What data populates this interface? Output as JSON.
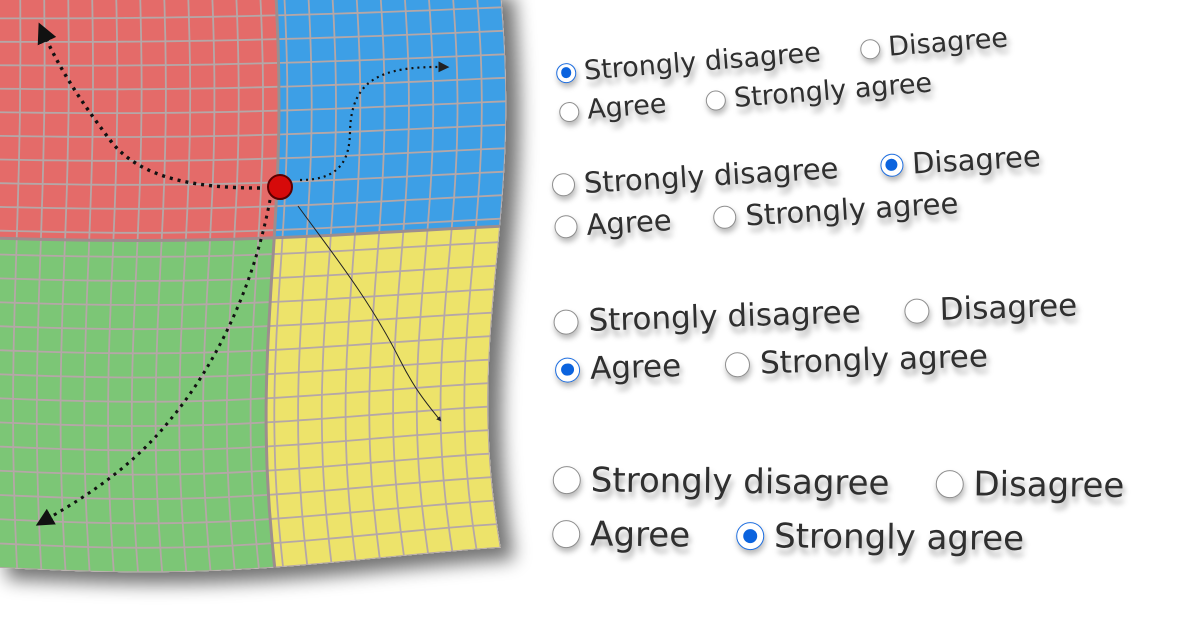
{
  "illustration": {
    "quadrant_colors": {
      "top_left": "#e46b69",
      "top_right": "#3d9fe6",
      "bottom_left": "#7cc676",
      "bottom_right": "#ede36a"
    },
    "grid_line_color": "#b5a7a7",
    "origin_dot_color": "#d60a0a"
  },
  "groups": [
    {
      "options": [
        "Strongly disagree",
        "Disagree",
        "Agree",
        "Strongly agree"
      ],
      "selected": 0
    },
    {
      "options": [
        "Strongly disagree",
        "Disagree",
        "Agree",
        "Strongly agree"
      ],
      "selected": 1
    },
    {
      "options": [
        "Strongly disagree",
        "Disagree",
        "Agree",
        "Strongly agree"
      ],
      "selected": 2
    },
    {
      "options": [
        "Strongly disagree",
        "Disagree",
        "Agree",
        "Strongly agree"
      ],
      "selected": 3
    }
  ],
  "accent_color": "#0b63de"
}
